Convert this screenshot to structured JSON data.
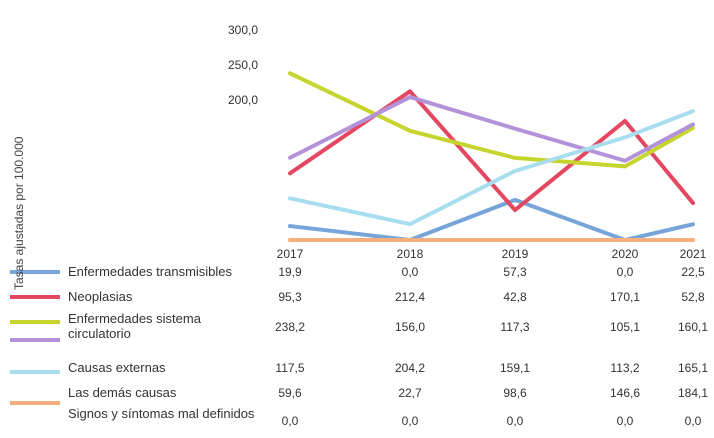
{
  "chart_data": {
    "type": "line",
    "y_label": "Tasas ajustadas por 100.000",
    "categories": [
      "2017",
      "2018",
      "2019",
      "2020",
      "2021"
    ],
    "ylim": [
      0,
      300
    ],
    "yticks": [
      {
        "value": 200,
        "label": "200,0"
      },
      {
        "value": 250,
        "label": "250,0"
      },
      {
        "value": 300,
        "label": "300,0"
      }
    ],
    "series": [
      {
        "name": "Enfermedades transmisibles",
        "color": "#78a5d9",
        "values": [
          19.9,
          0,
          57.3,
          0,
          22.5
        ],
        "value_labels": [
          "19,9",
          "0,0",
          "57,3",
          "0,0",
          "22,5"
        ]
      },
      {
        "name": "Neoplasias",
        "color": "#e4475f",
        "values": [
          95.3,
          212.4,
          42.8,
          170.1,
          52.8
        ],
        "value_labels": [
          "95,3",
          "212,4",
          "42,8",
          "170,1",
          "52,8"
        ]
      },
      {
        "name": "Enfermedades sistema circulatorio",
        "color": "#c5d52e",
        "values": [
          238.2,
          156.0,
          117.3,
          105.1,
          160.1
        ],
        "value_labels": [
          "238,2",
          "156,0",
          "117,3",
          "105,1",
          "160,1"
        ]
      },
      {
        "name": "Causas externas",
        "color": "#b293da",
        "values": [
          117.5,
          204.2,
          159.1,
          113.2,
          165.1
        ],
        "value_labels": [
          "117,5",
          "204,2",
          "159,1",
          "113,2",
          "165,1"
        ]
      },
      {
        "name": "Las demás causas",
        "color": "#a8ddf0",
        "values": [
          59.6,
          22.7,
          98.6,
          146.6,
          184.1
        ],
        "value_labels": [
          "59,6",
          "22,7",
          "98,6",
          "146,6",
          "184,1"
        ]
      },
      {
        "name": "Signos y síntomas mal definidos",
        "color": "#f3b07e",
        "values": [
          0,
          0,
          0,
          0,
          0
        ],
        "value_labels": [
          "0,0",
          "0,0",
          "0,0",
          "0,0",
          "0,0"
        ]
      }
    ]
  }
}
